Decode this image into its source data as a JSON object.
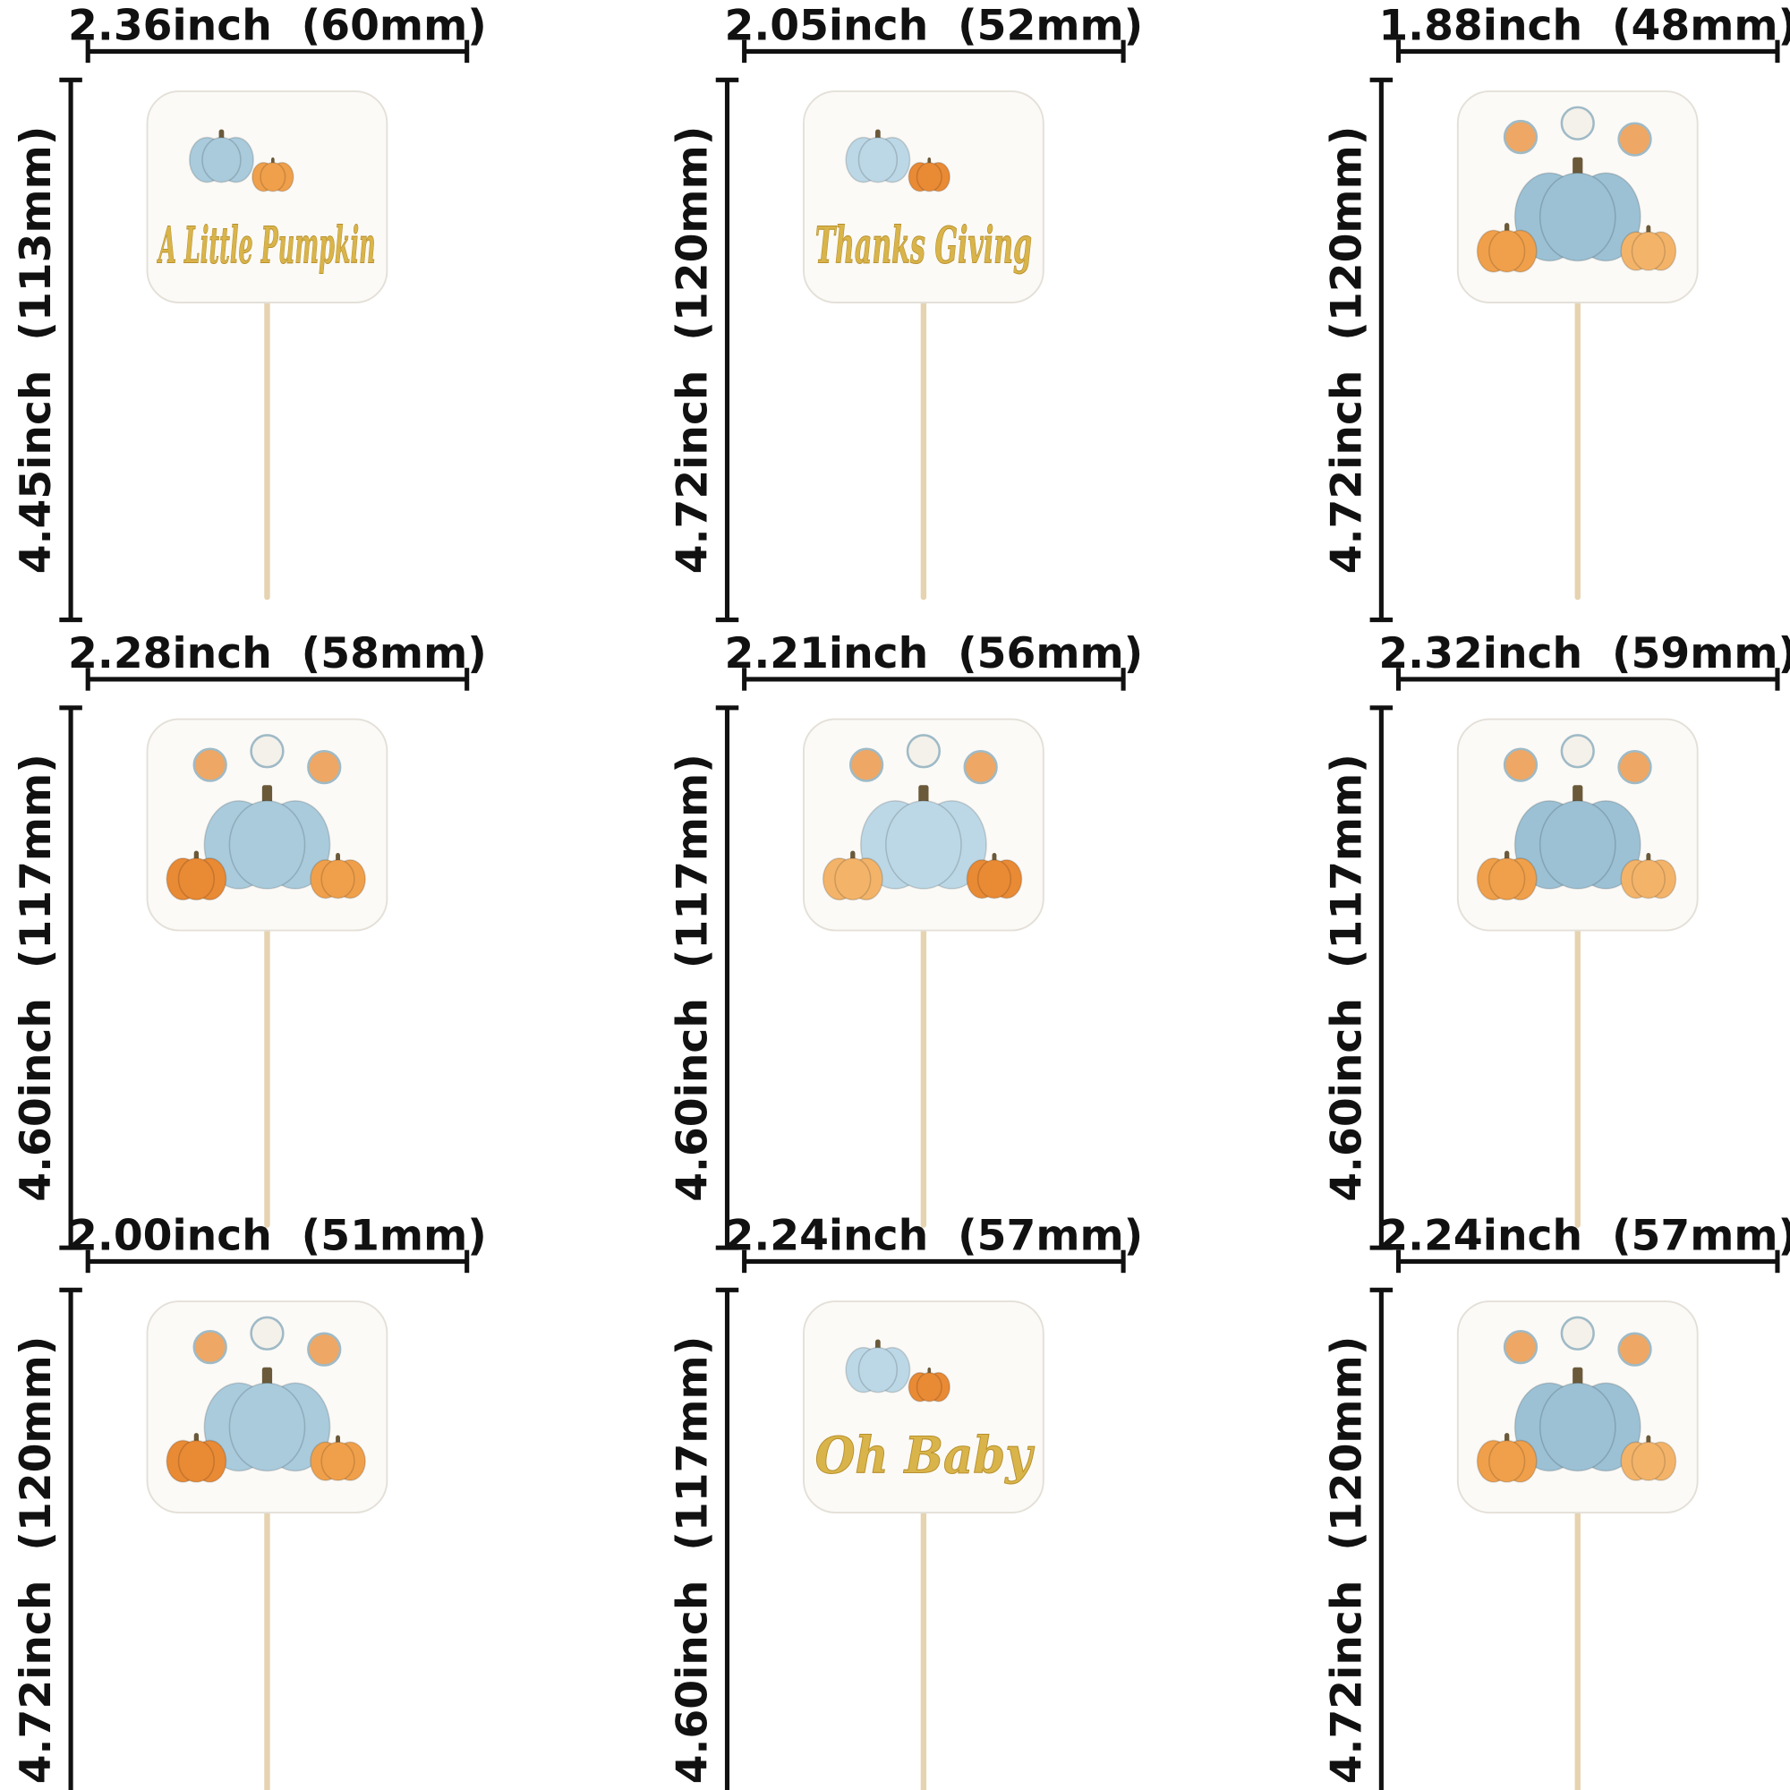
{
  "items": [
    {
      "width_label": "2.36inch  (60mm)",
      "height_label": "4.45inch  (113mm)",
      "art_text": "A Little Pumpkin"
    },
    {
      "width_label": "2.05inch  (52mm)",
      "height_label": "4.72inch  (120mm)",
      "art_text": "Thanks Giving"
    },
    {
      "width_label": "1.88inch  (48mm)",
      "height_label": "4.72inch  (120mm)"
    },
    {
      "width_label": "2.28inch  (58mm)",
      "height_label": "4.60inch  (117mm)"
    },
    {
      "width_label": "2.21inch  (56mm)",
      "height_label": "4.60inch  (117mm)"
    },
    {
      "width_label": "2.32inch  (59mm)",
      "height_label": "4.60inch  (117mm)"
    },
    {
      "width_label": "2.00inch  (51mm)",
      "height_label": "4.72inch  (120mm)"
    },
    {
      "width_label": "2.24inch  (57mm)",
      "height_label": "4.60inch  (117mm)",
      "art_text": "Oh Baby"
    },
    {
      "width_label": "2.24inch  (57mm)",
      "height_label": "4.72inch  (120mm)"
    }
  ]
}
